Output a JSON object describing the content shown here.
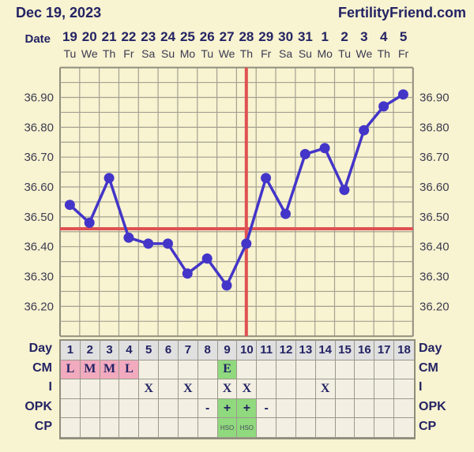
{
  "header": {
    "title": "Dec 19, 2023",
    "brand": "FertilityFriend.com"
  },
  "chart_data": {
    "type": "line",
    "date_axis_label": "Date",
    "x_date_labels": [
      "19",
      "20",
      "21",
      "22",
      "23",
      "24",
      "25",
      "26",
      "27",
      "28",
      "29",
      "30",
      "31",
      "1",
      "2",
      "3",
      "4",
      "5"
    ],
    "x_weekday_labels": [
      "Tu",
      "We",
      "Th",
      "Fr",
      "Sa",
      "Su",
      "Mo",
      "Tu",
      "We",
      "Th",
      "Fr",
      "Sa",
      "Su",
      "Mo",
      "Tu",
      "We",
      "Th",
      "Fr"
    ],
    "cycle_days": [
      1,
      2,
      3,
      4,
      5,
      6,
      7,
      8,
      9,
      10,
      11,
      12,
      13,
      14,
      15,
      16,
      17,
      18
    ],
    "values": [
      36.54,
      36.48,
      36.63,
      36.43,
      36.41,
      36.41,
      36.31,
      36.36,
      36.27,
      36.41,
      36.63,
      36.51,
      36.71,
      36.73,
      36.59,
      36.79,
      36.87,
      36.91
    ],
    "coverline_value": 36.46,
    "ovulation_line_day": 10,
    "ylim": [
      36.1,
      37.0
    ],
    "y_gridline_step": 0.05,
    "y_tick_labels": [
      "36.90",
      "36.80",
      "36.70",
      "36.60",
      "36.50",
      "36.40",
      "36.30",
      "36.20"
    ],
    "grid": true,
    "legend": "none"
  },
  "table": {
    "day_label": "Day",
    "days": [
      "1",
      "2",
      "3",
      "4",
      "5",
      "6",
      "7",
      "8",
      "9",
      "10",
      "11",
      "12",
      "13",
      "14",
      "15",
      "16",
      "17",
      "18"
    ],
    "rows": [
      {
        "label": "CM",
        "kind": "cm",
        "cells": [
          "L",
          "M",
          "M",
          "L",
          "",
          "",
          "",
          "",
          "E",
          "",
          "",
          "",
          "",
          "",
          "",
          "",
          "",
          ""
        ],
        "hl": [
          "pink",
          "pink",
          "pink",
          "pink",
          "",
          "",
          "",
          "",
          "green",
          "",
          "",
          "",
          "",
          "",
          "",
          "",
          "",
          ""
        ]
      },
      {
        "label": "I",
        "kind": "i",
        "cells": [
          "",
          "",
          "",
          "",
          "X",
          "",
          "X",
          "",
          "X",
          "X",
          "",
          "",
          "",
          "X",
          "",
          "",
          "",
          ""
        ],
        "hl": [
          "",
          "",
          "",
          "",
          "",
          "",
          "",
          "",
          "",
          "",
          "",
          "",
          "",
          "",
          "",
          "",
          "",
          ""
        ]
      },
      {
        "label": "OPK",
        "kind": "opk",
        "cells": [
          "",
          "",
          "",
          "",
          "",
          "",
          "",
          "-",
          "+",
          "+",
          "-",
          "",
          "",
          "",
          "",
          "",
          "",
          ""
        ],
        "hl": [
          "",
          "",
          "",
          "",
          "",
          "",
          "",
          "",
          "green",
          "green",
          "",
          "",
          "",
          "",
          "",
          "",
          "",
          ""
        ]
      },
      {
        "label": "CP",
        "kind": "cp",
        "cells": [
          "",
          "",
          "",
          "",
          "",
          "",
          "",
          "",
          "HSO",
          "HSO",
          "",
          "",
          "",
          "",
          "",
          "",
          "",
          ""
        ],
        "hl": [
          "",
          "",
          "",
          "",
          "",
          "",
          "",
          "",
          "green",
          "green",
          "",
          "",
          "",
          "",
          "",
          "",
          "",
          ""
        ]
      }
    ]
  },
  "colors": {
    "page_bg": "#f8f3d0",
    "grid_line": "#a3a192",
    "chart_border": "#908e7e",
    "temp_line": "#4335c8",
    "signal_red": "#e05152",
    "navy_text": "#232364",
    "pink_cell": "#f2aabf",
    "green_cell": "#90d97e",
    "day_row_bg": "#e0e0e0"
  }
}
